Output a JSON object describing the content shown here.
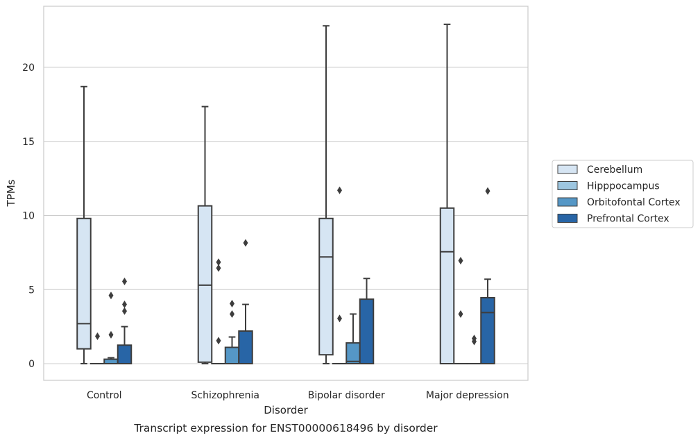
{
  "chart_data": {
    "type": "box",
    "title": "",
    "caption": "Transcript expression for ENST00000618496 by disorder",
    "xlabel": "Disorder",
    "ylabel": "TPMs",
    "ylim": [
      -1.1,
      24.1
    ],
    "yticks": [
      0,
      5,
      10,
      15,
      20
    ],
    "grid": true,
    "legend_position": "right",
    "categories": [
      "Control",
      "Schizophrenia",
      "Bipolar disorder",
      "Major depression"
    ],
    "series": [
      {
        "name": "Cerebellum",
        "color": "#d6e5f3",
        "boxes": [
          {
            "min": 0,
            "q1": 1.0,
            "median": 2.7,
            "q3": 9.8,
            "max": 18.7,
            "outliers": []
          },
          {
            "min": 0,
            "q1": 0.1,
            "median": 5.3,
            "q3": 10.65,
            "max": 17.35,
            "outliers": []
          },
          {
            "min": 0,
            "q1": 0.6,
            "median": 7.2,
            "q3": 9.8,
            "max": 22.8,
            "outliers": []
          },
          {
            "min": 0,
            "q1": 0,
            "median": 7.55,
            "q3": 10.5,
            "max": 22.9,
            "outliers": []
          }
        ]
      },
      {
        "name": "Hipppocampus",
        "color": "#9dc6e0",
        "boxes": [
          {
            "min": 0,
            "q1": 0,
            "median": 0,
            "q3": 0,
            "max": 0,
            "outliers": [
              1.85
            ]
          },
          {
            "min": 0,
            "q1": 0,
            "median": 0,
            "q3": 0,
            "max": 0,
            "outliers": [
              1.55,
              6.45,
              6.85
            ]
          },
          {
            "min": 0,
            "q1": 0,
            "median": 0,
            "q3": 0,
            "max": 0,
            "outliers": [
              3.05,
              11.7
            ]
          },
          {
            "min": 0,
            "q1": 0,
            "median": 0,
            "q3": 0,
            "max": 0,
            "outliers": [
              3.35,
              6.95
            ]
          }
        ]
      },
      {
        "name": "Orbitofontal Cortex",
        "color": "#5597c6",
        "boxes": [
          {
            "min": 0,
            "q1": 0,
            "median": 0,
            "q3": 0.3,
            "max": 0.4,
            "outliers": [
              1.95,
              4.6
            ]
          },
          {
            "min": 0,
            "q1": 0,
            "median": 0,
            "q3": 1.1,
            "max": 1.8,
            "outliers": [
              3.35,
              4.05
            ]
          },
          {
            "min": 0,
            "q1": 0,
            "median": 0.15,
            "q3": 1.4,
            "max": 3.35,
            "outliers": []
          },
          {
            "min": 0,
            "q1": 0,
            "median": 0,
            "q3": 0,
            "max": 0,
            "outliers": [
              1.5,
              1.7
            ]
          }
        ]
      },
      {
        "name": "Prefrontal Cortex",
        "color": "#2865a6",
        "boxes": [
          {
            "min": 0,
            "q1": 0,
            "median": 0,
            "q3": 1.25,
            "max": 2.5,
            "outliers": [
              3.55,
              4.0,
              5.55
            ]
          },
          {
            "min": 0,
            "q1": 0,
            "median": 0,
            "q3": 2.2,
            "max": 4.0,
            "outliers": [
              8.15
            ]
          },
          {
            "min": 0,
            "q1": 0,
            "median": 0,
            "q3": 4.35,
            "max": 5.75,
            "outliers": []
          },
          {
            "min": 0,
            "q1": 0,
            "median": 3.45,
            "q3": 4.45,
            "max": 5.7,
            "outliers": [
              11.65
            ]
          }
        ]
      }
    ]
  }
}
